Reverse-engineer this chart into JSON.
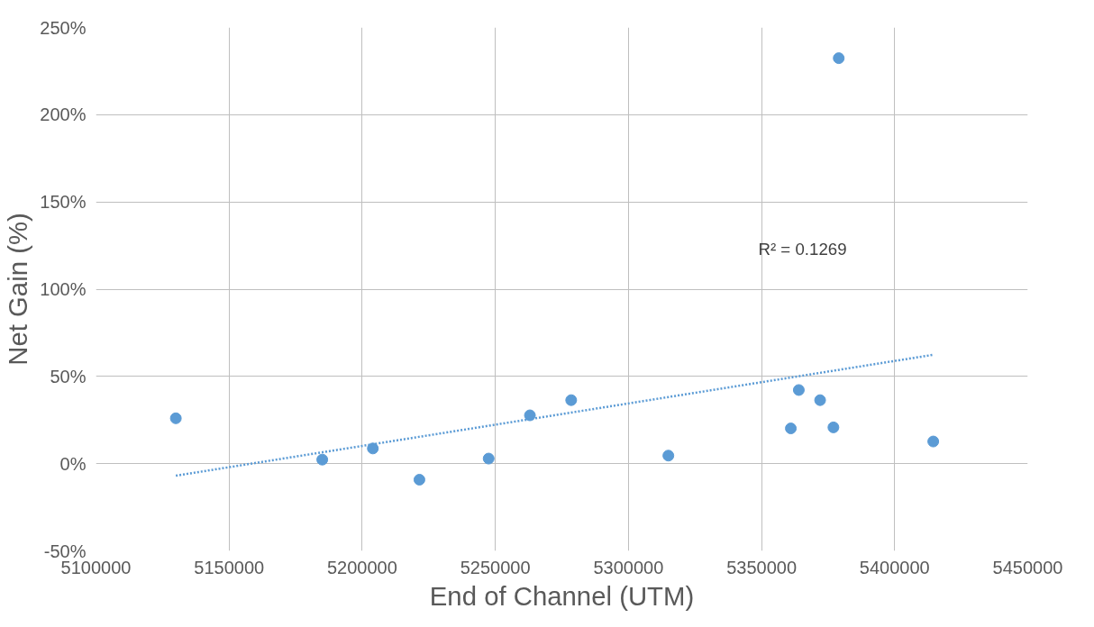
{
  "chart_data": {
    "type": "scatter",
    "xlabel": "End of Channel (UTM)",
    "ylabel": "Net Gain (%)",
    "x": [
      5130000,
      5185000,
      5204000,
      5221500,
      5247500,
      5263000,
      5278500,
      5315000,
      5361000,
      5364000,
      5372000,
      5377000,
      5379000,
      5414500
    ],
    "series": [
      {
        "color": "#5b9bd5",
        "marker": "circle",
        "values": [
          26,
          2.3,
          8.7,
          -9.2,
          2.9,
          27.7,
          36.4,
          4.6,
          20.2,
          42.2,
          36.4,
          20.8,
          232.4,
          12.7
        ]
      },
      {
        "type": "line",
        "color": "#5b9bd5",
        "line_style": "dotted",
        "marker": "none",
        "x": [
          5130000,
          5414500
        ],
        "values": [
          -6.9,
          62.4
        ]
      }
    ],
    "annotations": [
      "R² = 0.1269"
    ],
    "xlim": [
      5100000,
      5450000
    ],
    "xticks": [
      5100000,
      5150000,
      5200000,
      5250000,
      5300000,
      5350000,
      5400000,
      5450000
    ],
    "ylim": [
      -50,
      250
    ],
    "yticks": [
      {
        "value": -50,
        "label": "-50%"
      },
      {
        "value": 0,
        "label": "0%"
      },
      {
        "value": 50,
        "label": "50%"
      },
      {
        "value": 100,
        "label": "100%"
      },
      {
        "value": 150,
        "label": "150%"
      },
      {
        "value": 200,
        "label": "200%"
      },
      {
        "value": 250,
        "label": "250%"
      }
    ],
    "grid": true
  }
}
